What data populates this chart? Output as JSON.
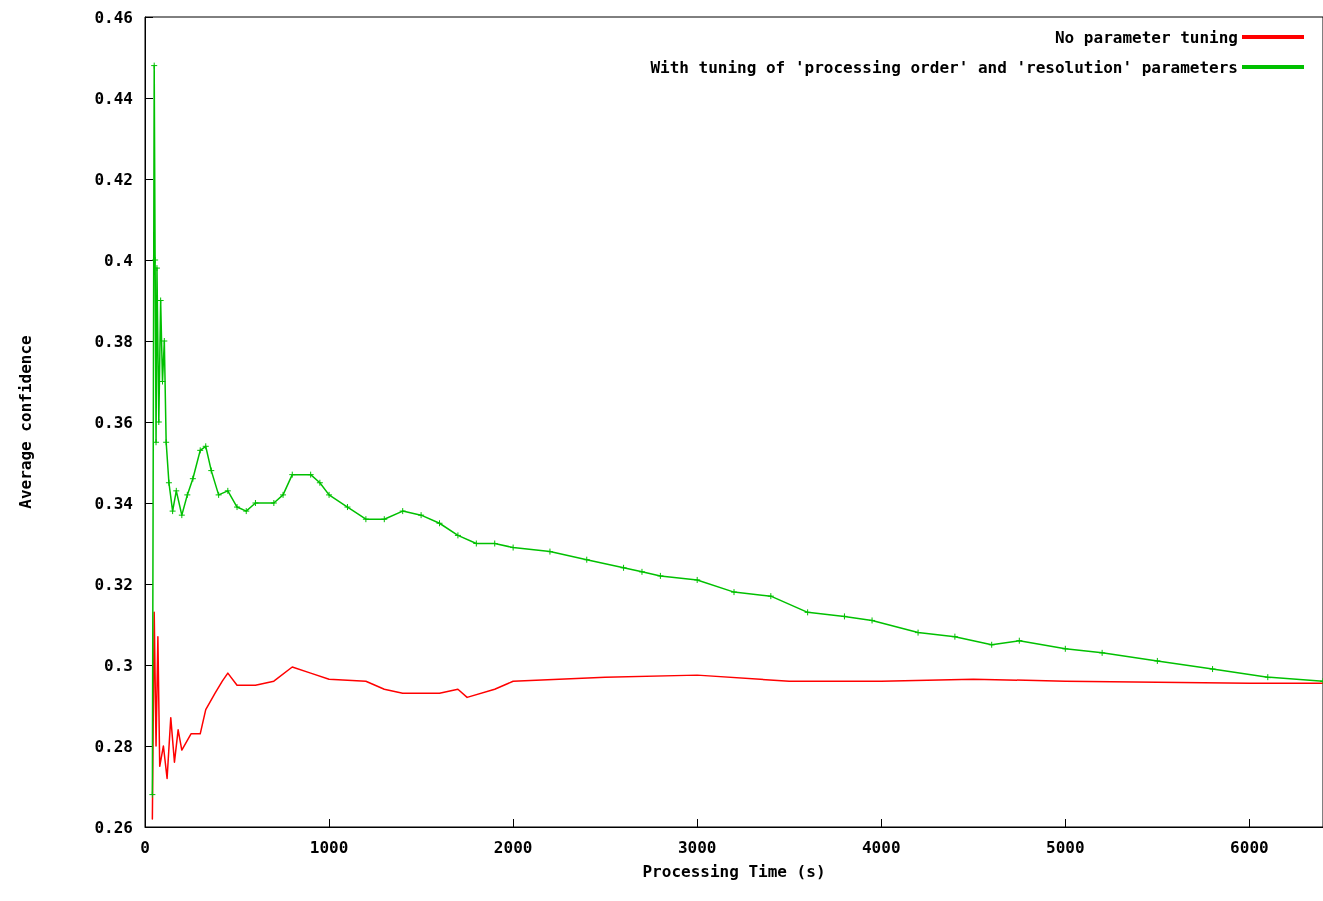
{
  "chart_data": {
    "type": "line",
    "xlabel": "Processing Time (s)",
    "ylabel": "Average confidence",
    "xlim": [
      0,
      6400
    ],
    "xticks": [
      0,
      1000,
      2000,
      3000,
      4000,
      5000,
      6000
    ],
    "ylim": [
      0.26,
      0.46
    ],
    "yticks": [
      0.26,
      0.28,
      0.3,
      0.32,
      0.34,
      0.36,
      0.38,
      0.4,
      0.42,
      0.44,
      0.46
    ],
    "grid": false,
    "legend": "top right",
    "series": [
      {
        "name": "No parameter tuning",
        "color": "#ff0000",
        "marker": "none",
        "x": [
          40,
          50,
          60,
          70,
          80,
          100,
          120,
          140,
          160,
          180,
          200,
          250,
          300,
          330,
          380,
          420,
          450,
          500,
          600,
          700,
          800,
          900,
          1000,
          1200,
          1300,
          1400,
          1600,
          1700,
          1750,
          1900,
          2000,
          2500,
          3000,
          3500,
          4000,
          4500,
          5000,
          6000,
          6400
        ],
        "values": [
          0.262,
          0.313,
          0.28,
          0.307,
          0.275,
          0.28,
          0.272,
          0.287,
          0.276,
          0.284,
          0.279,
          0.283,
          0.283,
          0.289,
          0.293,
          0.296,
          0.298,
          0.295,
          0.295,
          0.296,
          0.2995,
          0.298,
          0.2965,
          0.296,
          0.294,
          0.293,
          0.293,
          0.294,
          0.292,
          0.294,
          0.296,
          0.297,
          0.2975,
          0.296,
          0.296,
          0.2965,
          0.296,
          0.2955,
          0.2955
        ]
      },
      {
        "name": "With tuning of 'processing order' and 'resolution' parameters",
        "color": "#00c000",
        "marker": "cross",
        "x": [
          40,
          50,
          55,
          60,
          65,
          75,
          85,
          95,
          105,
          115,
          130,
          150,
          170,
          200,
          230,
          260,
          300,
          330,
          360,
          400,
          450,
          500,
          550,
          600,
          700,
          750,
          800,
          900,
          950,
          1000,
          1100,
          1200,
          1300,
          1400,
          1500,
          1600,
          1700,
          1800,
          1900,
          2000,
          2200,
          2400,
          2600,
          2700,
          2800,
          3000,
          3200,
          3400,
          3600,
          3800,
          3950,
          4200,
          4400,
          4600,
          4750,
          5000,
          5200,
          5500,
          5800,
          6100,
          6400
        ],
        "values": [
          0.268,
          0.448,
          0.4,
          0.355,
          0.398,
          0.36,
          0.39,
          0.37,
          0.38,
          0.355,
          0.345,
          0.338,
          0.343,
          0.337,
          0.342,
          0.346,
          0.353,
          0.354,
          0.348,
          0.342,
          0.343,
          0.339,
          0.338,
          0.34,
          0.34,
          0.342,
          0.347,
          0.347,
          0.345,
          0.342,
          0.339,
          0.336,
          0.336,
          0.338,
          0.337,
          0.335,
          0.332,
          0.33,
          0.33,
          0.329,
          0.328,
          0.326,
          0.324,
          0.323,
          0.322,
          0.321,
          0.318,
          0.317,
          0.313,
          0.312,
          0.311,
          0.308,
          0.307,
          0.305,
          0.306,
          0.304,
          0.303,
          0.301,
          0.299,
          0.297,
          0.296
        ]
      }
    ]
  }
}
